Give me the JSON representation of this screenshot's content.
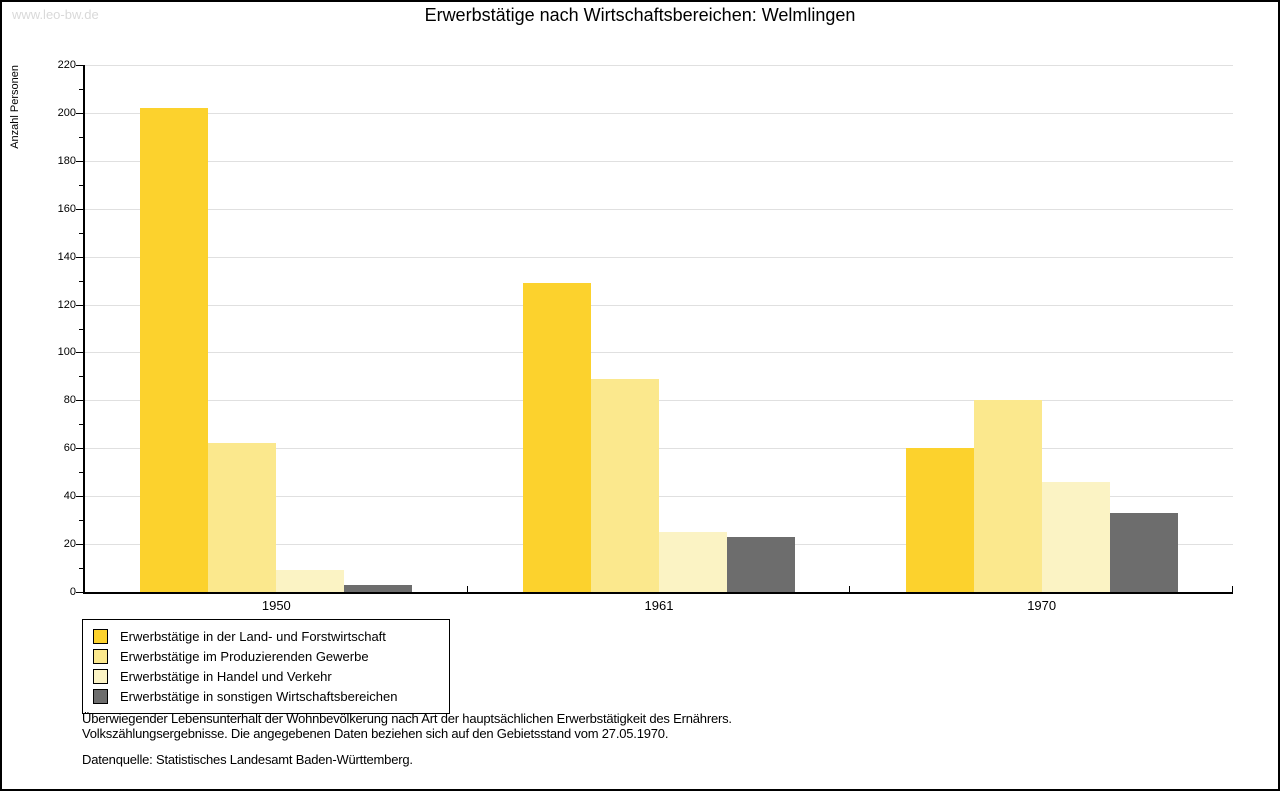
{
  "watermark": "www.leo-bw.de",
  "title": "Erwerbstätige nach Wirtschaftsbereichen: Welmlingen",
  "chart_data": {
    "type": "bar",
    "title": "Erwerbstätige nach Wirtschaftsbereichen: Welmlingen",
    "xlabel": "",
    "ylabel": "Anzahl Personen",
    "ylim": [
      0,
      220
    ],
    "ytick_step": 20,
    "ytick_minor_step": 10,
    "grid": true,
    "gridline_color": "#e0e0e0",
    "legend_position": "bottom-left",
    "categories": [
      "1950",
      "1961",
      "1970"
    ],
    "series": [
      {
        "name": "Erwerbstätige in der Land- und Forstwirtschaft",
        "color": "#fcd22d",
        "values": [
          202,
          129,
          60
        ]
      },
      {
        "name": "Erwerbstätige im Produzierenden Gewerbe",
        "color": "#fbe88d",
        "values": [
          62,
          89,
          80
        ]
      },
      {
        "name": "Erwerbstätige in Handel und Verkehr",
        "color": "#fbf3c4",
        "values": [
          9,
          25,
          46
        ]
      },
      {
        "name": "Erwerbstätige in sonstigen Wirtschaftsbereichen",
        "color": "#6d6d6d",
        "values": [
          3,
          23,
          33
        ]
      }
    ]
  },
  "footnotes": {
    "line1": "Überwiegender Lebensunterhalt der Wohnbevölkerung nach Art der hauptsächlichen Erwerbstätigkeit des Ernährers.",
    "line2": "Volkszählungsergebnisse. Die angegebenen Daten beziehen sich auf den Gebietsstand vom 27.05.1970.",
    "source": "Datenquelle: Statistisches Landesamt Baden-Württemberg."
  }
}
